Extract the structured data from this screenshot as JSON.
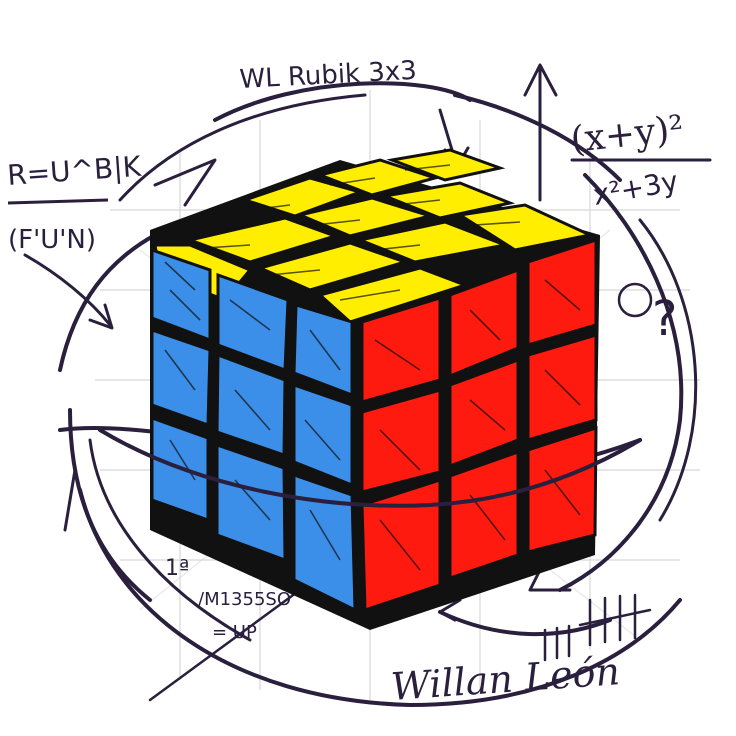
{
  "title": "WL Rubik 3x3",
  "signature": "Willan León",
  "notes": {
    "formula_top_right": "(x+y)²",
    "formula_under": "x²+3y",
    "formula_left_top": "R=U^B|K",
    "formula_left_bottom": "(F'U'N)",
    "note_bottom_left_1": "1ª",
    "note_bottom_left_2": "/M1355SO",
    "note_bottom_left_3": "= UP",
    "question_mark": "?"
  },
  "colors": {
    "ink": "#2a1f3d",
    "yellow": "#ffee00",
    "blue": "#3c8fe8",
    "red": "#ff1a0f",
    "cube_body": "#111111",
    "grid_light": "#d7d7d7"
  },
  "faces": {
    "top": "yellow",
    "left": "blue",
    "right": "red"
  }
}
